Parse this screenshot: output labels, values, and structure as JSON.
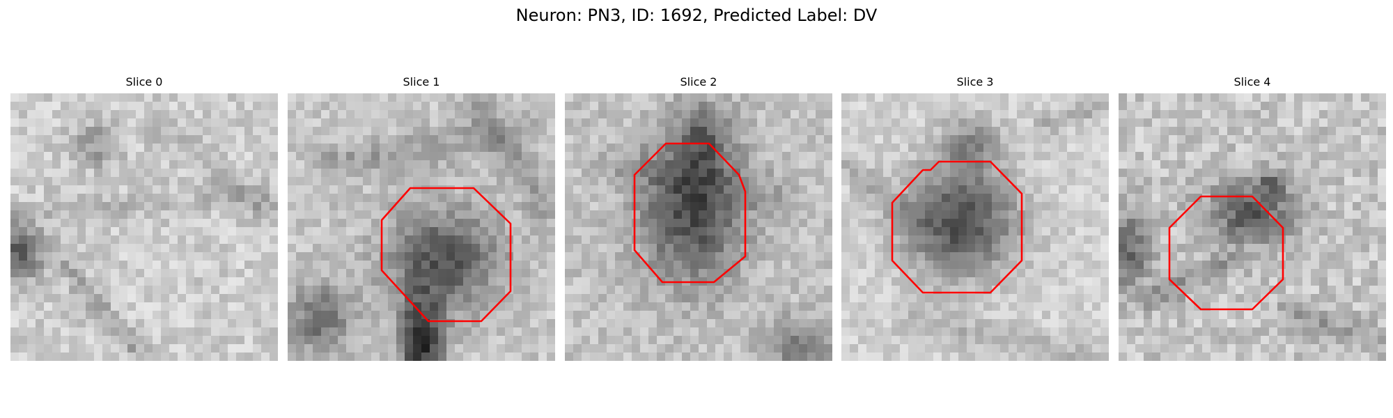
{
  "figure": {
    "title": "Neuron: PN3, ID: 1692, Predicted Label: DV"
  },
  "panels": [
    {
      "title": "Slice 0",
      "has_boundary": false
    },
    {
      "title": "Slice 1",
      "has_boundary": true
    },
    {
      "title": "Slice 2",
      "has_boundary": true
    },
    {
      "title": "Slice 3",
      "has_boundary": true
    },
    {
      "title": "Slice 4",
      "has_boundary": true
    }
  ],
  "colors": {
    "boundary": "#ff0000",
    "background": "#ffffff",
    "image_dark": "#111111",
    "image_light": "#f1f1f1"
  }
}
